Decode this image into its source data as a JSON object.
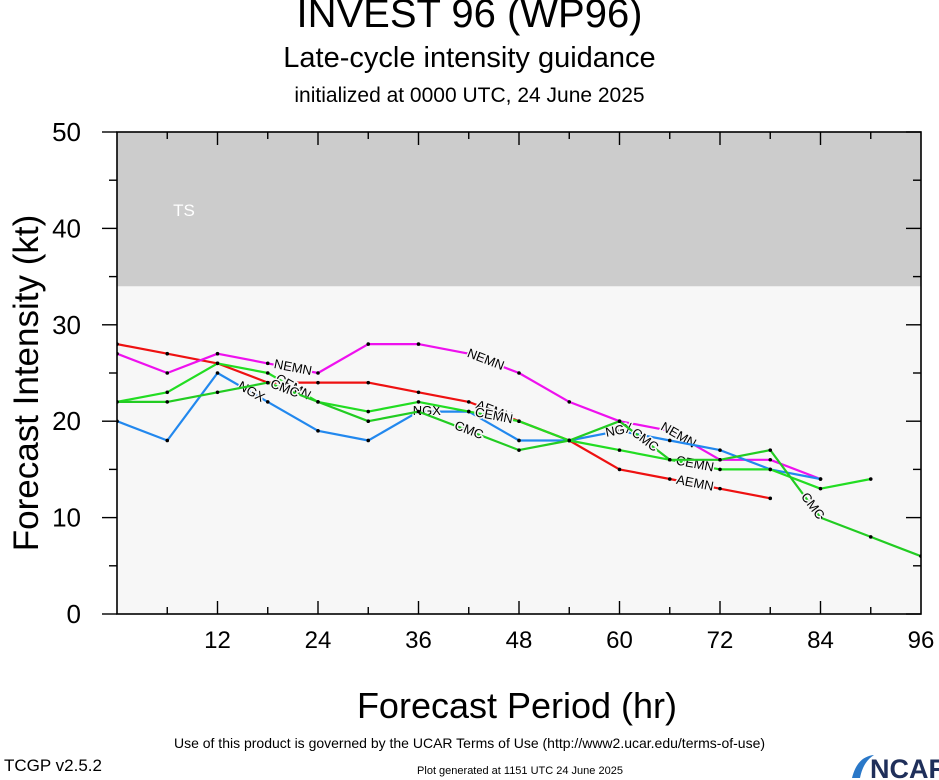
{
  "header": {
    "title": "INVEST 96 (WP96)",
    "subtitle": "Late-cycle intensity guidance",
    "init": "initialized at 0000 UTC, 24 June 2025"
  },
  "footer": {
    "terms": "Use of this product is governed by the UCAR Terms of Use (http://www2.ucar.edu/terms-of-use)",
    "version": "TCGP v2.5.2",
    "generated": "Plot generated at 1151 UTC   24 June 2025",
    "logo_text": "NCAR"
  },
  "chart_data": {
    "type": "line",
    "title": "INVEST 96 (WP96)",
    "xlabel": "Forecast Period (hr)",
    "ylabel": "Forecast Intensity (kt)",
    "xlim": [
      0,
      96
    ],
    "ylim": [
      0,
      50
    ],
    "x_ticks": [
      12,
      24,
      36,
      48,
      60,
      72,
      84,
      96
    ],
    "y_ticks": [
      0,
      10,
      20,
      30,
      40,
      50
    ],
    "bands": [
      {
        "label": "TS",
        "from": 34,
        "to": 50,
        "color": "#cccccc"
      }
    ],
    "plot_background": "#f7f7f7",
    "grid": false,
    "series": [
      {
        "name": "AEMN",
        "color": "#ee1111",
        "x": [
          0,
          6,
          12,
          18,
          24,
          30,
          36,
          42,
          48,
          54,
          60,
          66,
          72,
          78
        ],
        "y": [
          28,
          27,
          26,
          24,
          24,
          24,
          23,
          22,
          20,
          18,
          15,
          14,
          13,
          12
        ],
        "label_x": [
          45,
          69
        ]
      },
      {
        "name": "NEMN",
        "color": "#ee11ee",
        "x": [
          0,
          6,
          12,
          18,
          24,
          30,
          36,
          42,
          48,
          54,
          60,
          66,
          72,
          78,
          84
        ],
        "y": [
          27,
          25,
          27,
          26,
          25,
          28,
          28,
          27,
          25,
          22,
          20,
          19,
          16,
          16,
          14
        ],
        "label_x": [
          21,
          44,
          67
        ]
      },
      {
        "name": "NGX",
        "color": "#2288ee",
        "x": [
          0,
          6,
          12,
          18,
          24,
          30,
          36,
          42,
          48,
          54,
          60,
          66,
          72,
          78,
          84
        ],
        "y": [
          20,
          18,
          25,
          22,
          19,
          18,
          21,
          21,
          18,
          18,
          19,
          18,
          17,
          15,
          14
        ],
        "label_x": [
          16,
          37,
          60
        ]
      },
      {
        "name": "CEMN",
        "color": "#22dd22",
        "x": [
          0,
          6,
          12,
          18,
          24,
          30,
          36,
          42,
          48,
          54,
          60,
          66,
          72,
          78,
          84,
          90
        ],
        "y": [
          22,
          23,
          26,
          25,
          22,
          21,
          22,
          21,
          20,
          18,
          17,
          16,
          15,
          15,
          13,
          14
        ],
        "label_x": [
          21,
          45,
          69
        ]
      },
      {
        "name": "CMC",
        "color": "#22cc22",
        "x": [
          0,
          6,
          12,
          18,
          24,
          30,
          36,
          42,
          48,
          54,
          60,
          66,
          72,
          78,
          84,
          90,
          96
        ],
        "y": [
          22,
          22,
          23,
          24,
          22,
          20,
          21,
          19,
          17,
          18,
          20,
          16,
          16,
          17,
          10,
          8,
          6
        ],
        "label_x": [
          20,
          42,
          63,
          83
        ]
      }
    ]
  }
}
